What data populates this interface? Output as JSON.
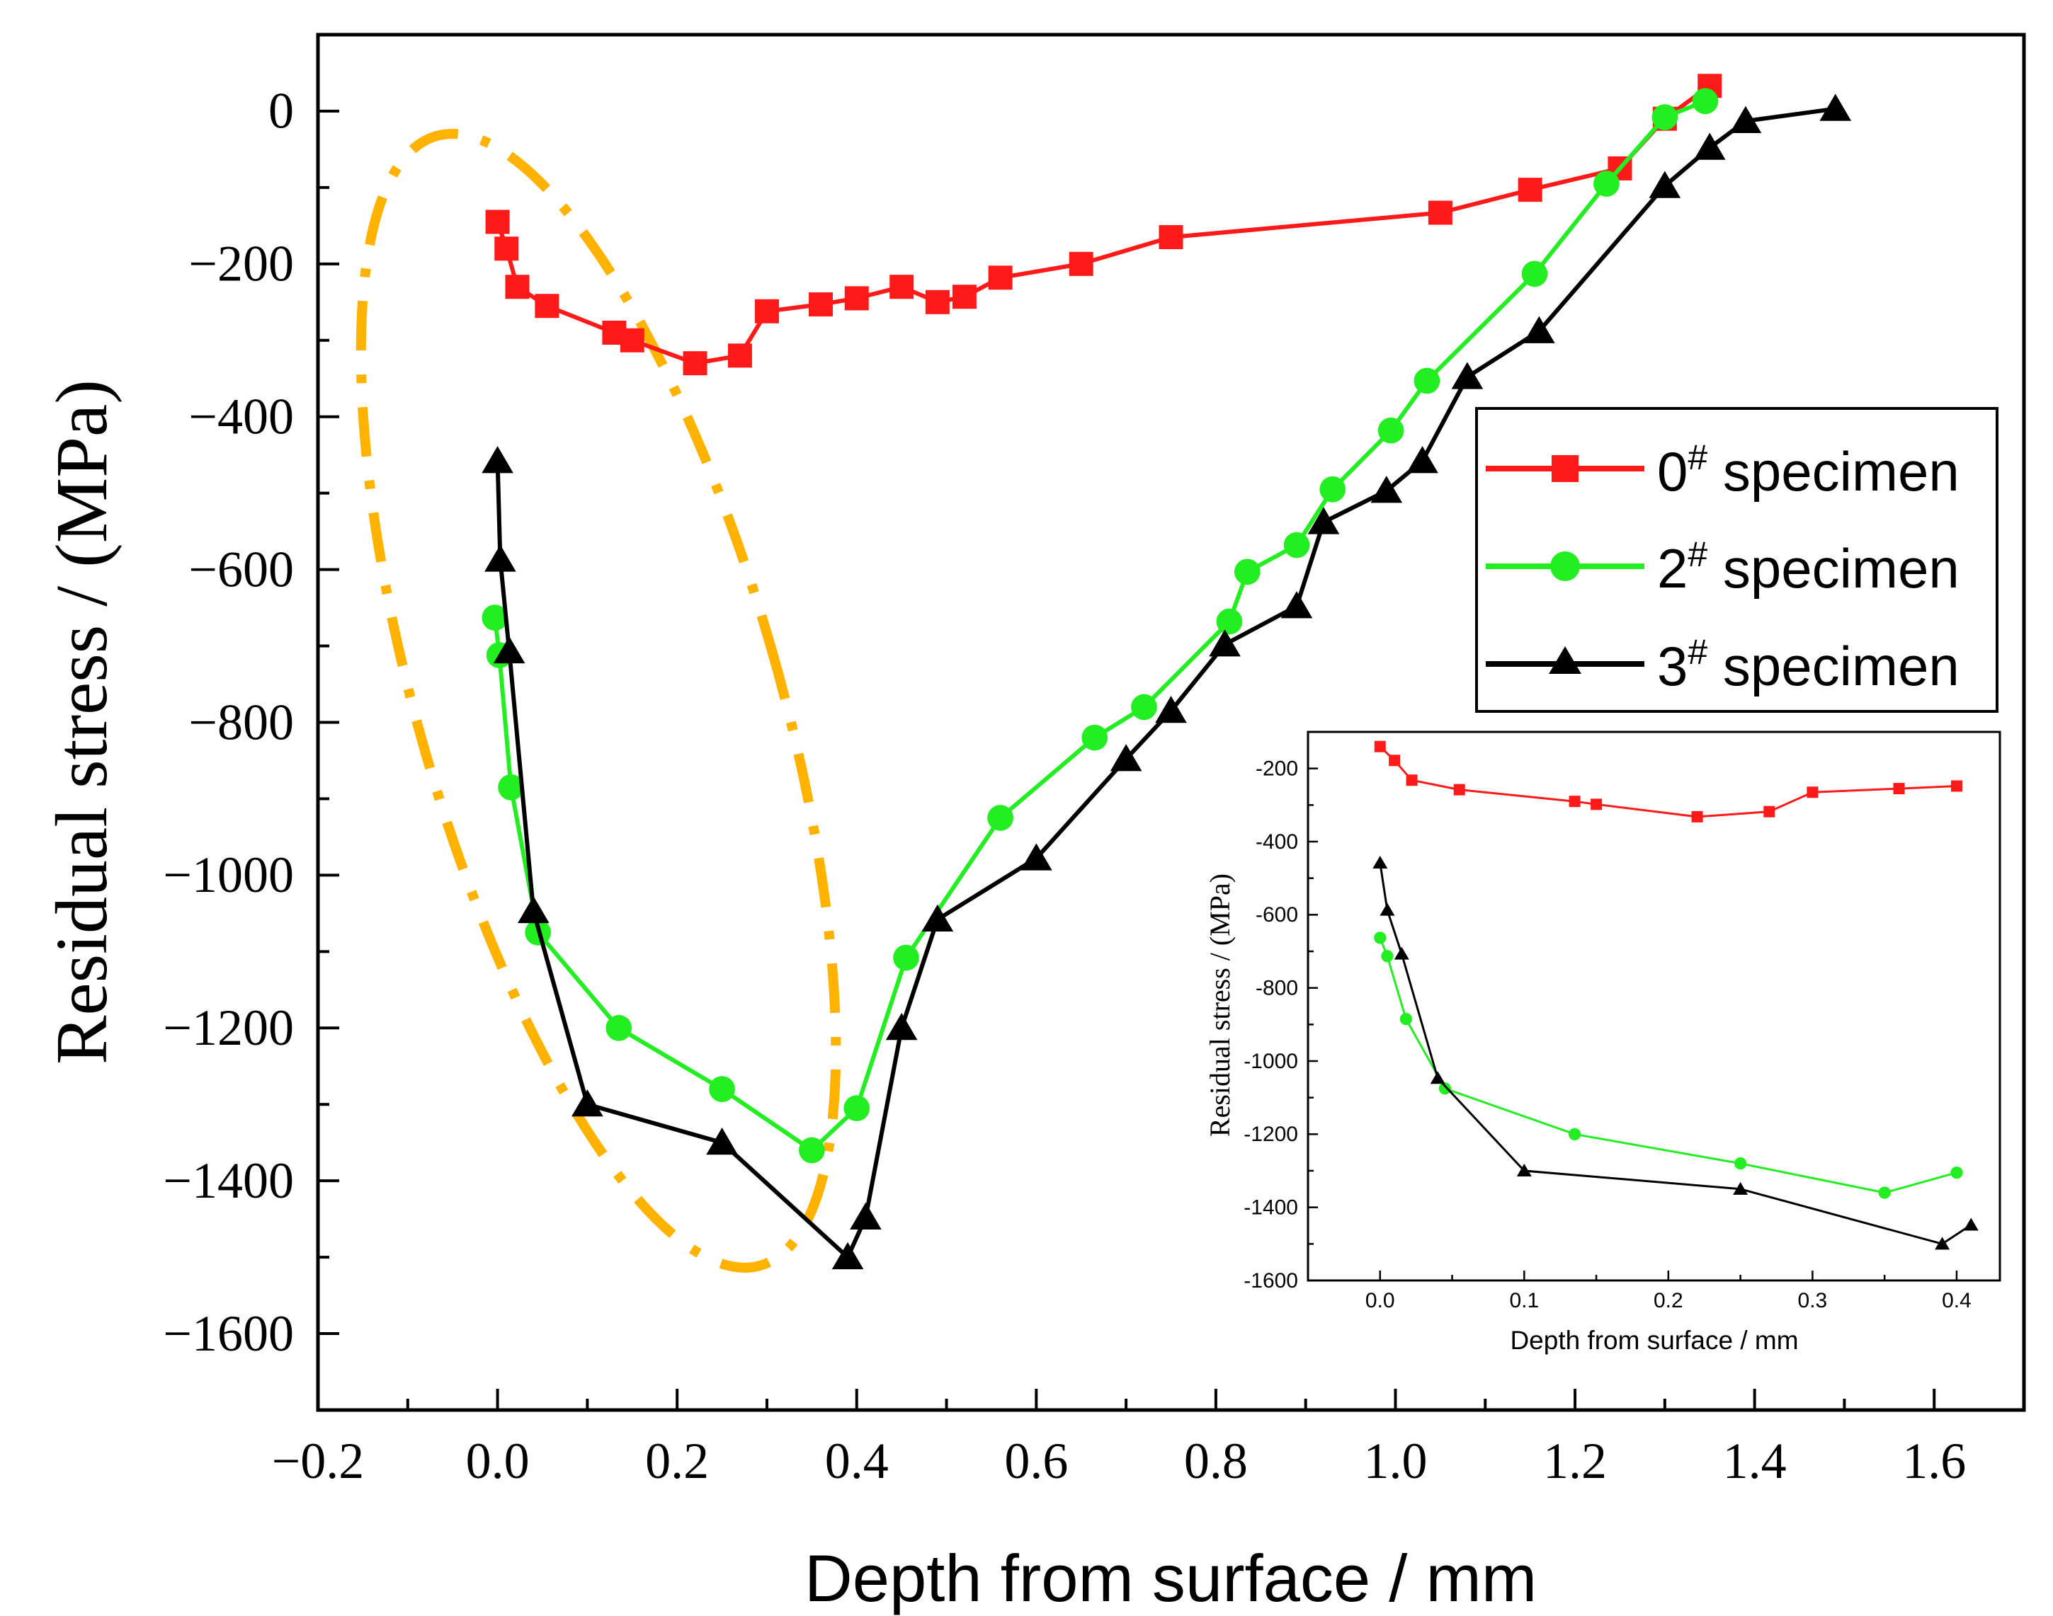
{
  "chart_data": [
    {
      "type": "line",
      "role": "main",
      "xlabel": "Depth from surface / mm",
      "ylabel": "Residual stress / (MPa)",
      "xlim": [
        -0.2,
        1.7
      ],
      "ylim": [
        -1700,
        100
      ],
      "xticks": [
        -0.2,
        0.0,
        0.2,
        0.4,
        0.6,
        0.8,
        1.0,
        1.2,
        1.4,
        1.6
      ],
      "xtick_labels": [
        "−0.2",
        "0.0",
        "0.2",
        "0.4",
        "0.6",
        "0.8",
        "1.0",
        "1.2",
        "1.4",
        "1.6"
      ],
      "yticks": [
        0,
        -200,
        -400,
        -600,
        -800,
        -1000,
        -1200,
        -1400,
        -1600
      ],
      "ytick_labels": [
        "0",
        "−200",
        "−400",
        "−600",
        "−800",
        "−1000",
        "−1200",
        "−1400",
        "−1600"
      ],
      "legend_position": "right",
      "annotation": "dash-dot ellipse highlighting the near-surface region",
      "series": [
        {
          "name": "0",
          "label_sup": "#",
          "label_suffix": "specimen",
          "color": "#ff1a1a",
          "marker": "square",
          "x": [
            0.0,
            0.01,
            0.022,
            0.055,
            0.13,
            0.15,
            0.22,
            0.27,
            0.3,
            0.36,
            0.4,
            0.45,
            0.49,
            0.52,
            0.56,
            0.65,
            0.75,
            1.05,
            1.15,
            1.25,
            1.3,
            1.35
          ],
          "y": [
            -145,
            -180,
            -230,
            -255,
            -290,
            -300,
            -330,
            -320,
            -262,
            -253,
            -245,
            -230,
            -250,
            -243,
            -218,
            -200,
            -165,
            -133,
            -103,
            -75,
            -10,
            33
          ]
        },
        {
          "name": "2",
          "label_sup": "#",
          "label_suffix": "specimen",
          "color": "#22ee22",
          "marker": "circle",
          "x": [
            -0.003,
            0.002,
            0.015,
            0.045,
            0.135,
            0.25,
            0.35,
            0.4,
            0.455,
            0.56,
            0.665,
            0.72,
            0.815,
            0.835,
            0.89,
            0.93,
            0.995,
            1.035,
            1.155,
            1.235,
            1.3,
            1.345
          ],
          "y": [
            -663,
            -712,
            -885,
            -1075,
            -1200,
            -1280,
            -1360,
            -1305,
            -1108,
            -925,
            -820,
            -780,
            -668,
            -603,
            -568,
            -495,
            -418,
            -353,
            -213,
            -95,
            -8,
            13
          ]
        },
        {
          "name": "3",
          "label_sup": "#",
          "label_suffix": "specimen",
          "color": "#000000",
          "marker": "triangle",
          "x": [
            0.0,
            0.003,
            0.013,
            0.04,
            0.1,
            0.25,
            0.39,
            0.41,
            0.45,
            0.49,
            0.6,
            0.7,
            0.75,
            0.81,
            0.89,
            0.92,
            0.99,
            1.03,
            1.08,
            1.16,
            1.3,
            1.35,
            1.39,
            1.49
          ],
          "y": [
            -458,
            -587,
            -707,
            -1047,
            -1300,
            -1350,
            -1500,
            -1448,
            -1200,
            -1058,
            -978,
            -848,
            -785,
            -698,
            -648,
            -538,
            -497,
            -458,
            -348,
            -288,
            -98,
            -48,
            -13,
            3
          ]
        }
      ]
    },
    {
      "type": "line",
      "role": "inset",
      "xlabel": "Depth from surface / mm",
      "ylabel": "Residual stress / (MPa)",
      "xlim": [
        -0.05,
        0.43
      ],
      "ylim": [
        -1600,
        -100
      ],
      "xticks": [
        0.0,
        0.1,
        0.2,
        0.3,
        0.4
      ],
      "xtick_labels": [
        "0.0",
        "0.1",
        "0.2",
        "0.3",
        "0.4"
      ],
      "yticks": [
        -200,
        -400,
        -600,
        -800,
        -1000,
        -1200,
        -1400,
        -1600
      ],
      "ytick_labels": [
        "-200",
        "-400",
        "-600",
        "-800",
        "-1000",
        "-1200",
        "-1400",
        "-1600"
      ],
      "series": [
        {
          "name": "0# specimen",
          "color": "#ff1a1a",
          "marker": "square",
          "x": [
            0.0,
            0.01,
            0.022,
            0.055,
            0.135,
            0.15,
            0.22,
            0.27,
            0.3,
            0.36,
            0.4
          ],
          "y": [
            -140,
            -178,
            -232,
            -258,
            -290,
            -298,
            -332,
            -318,
            -265,
            -255,
            -248
          ]
        },
        {
          "name": "2# specimen",
          "color": "#22ee22",
          "marker": "circle",
          "x": [
            0.0,
            0.005,
            0.018,
            0.045,
            0.135,
            0.25,
            0.35,
            0.4
          ],
          "y": [
            -663,
            -713,
            -885,
            -1075,
            -1200,
            -1280,
            -1360,
            -1305
          ]
        },
        {
          "name": "3# specimen",
          "color": "#000000",
          "marker": "triangle",
          "x": [
            0.0,
            0.005,
            0.015,
            0.04,
            0.1,
            0.25,
            0.39,
            0.41
          ],
          "y": [
            -458,
            -587,
            -707,
            -1047,
            -1300,
            -1350,
            -1500,
            -1448
          ]
        }
      ]
    }
  ]
}
